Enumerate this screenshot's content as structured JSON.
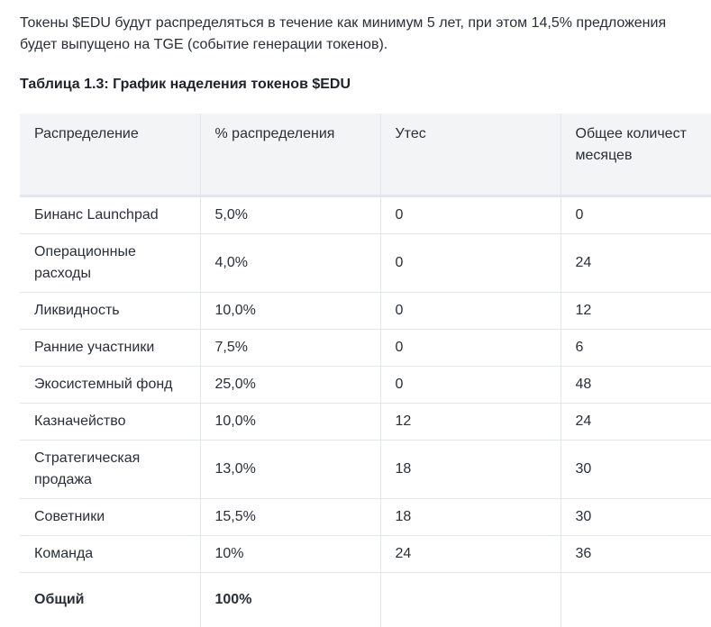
{
  "intro_text": "Токены $EDU будут распределяться в течение как минимум 5 лет, при этом 14,5% предложения будет выпущено на TGE (событие генерации токенов).",
  "table_caption": "Таблица 1.3: График наделения токенов $EDU",
  "table": {
    "headers": [
      "Распределение",
      "% распределения",
      "Утес",
      "Общее количество месяцев"
    ],
    "header_visible": {
      "col4_line1": "Общее количест",
      "col4_line2": "месяцев"
    },
    "rows": [
      [
        "Бинанс Launchpad",
        "5,0%",
        "0",
        "0"
      ],
      [
        "Операционные расходы",
        "4,0%",
        "0",
        "24"
      ],
      [
        "Ликвидность",
        "10,0%",
        "0",
        "12"
      ],
      [
        "Ранние участники",
        "7,5%",
        "0",
        "6"
      ],
      [
        "Экосистемный фонд",
        "25,0%",
        "0",
        "48"
      ],
      [
        "Казначейство",
        "10,0%",
        "12",
        "24"
      ],
      [
        "Стратегическая продажа",
        "13,0%",
        "18",
        "30"
      ],
      [
        "Советники",
        "15,5%",
        "18",
        "30"
      ],
      [
        "Команда",
        "10%",
        "24",
        "36"
      ]
    ],
    "total": [
      "Общий",
      "100%",
      "",
      ""
    ]
  }
}
